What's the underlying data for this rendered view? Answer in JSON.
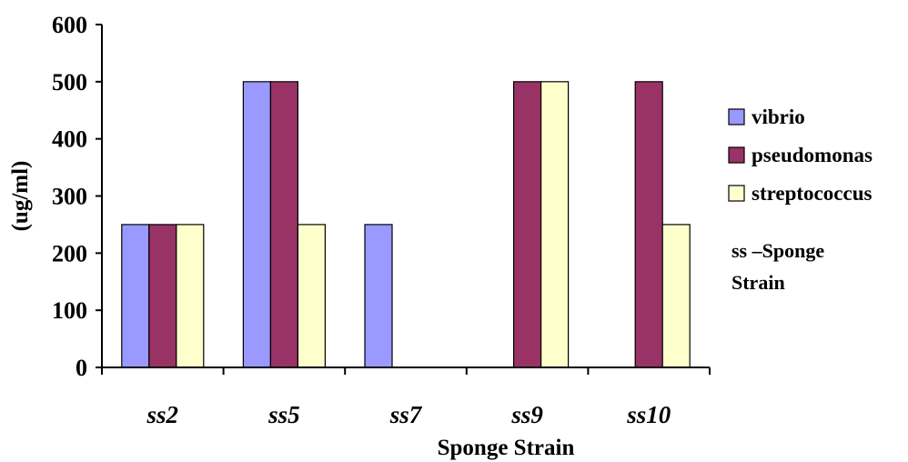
{
  "chart_data": {
    "type": "bar",
    "title": "",
    "xlabel": "Sponge Strain",
    "ylabel": "(ug/ml)",
    "ylim": [
      0,
      600
    ],
    "yticks": [
      0,
      100,
      200,
      300,
      400,
      500,
      600
    ],
    "categories": [
      "ss2",
      "ss5",
      "ss7",
      "ss9",
      "ss10"
    ],
    "series": [
      {
        "name": "vibrio",
        "color": "#9999ff",
        "values": [
          250,
          500,
          250,
          0,
          0
        ]
      },
      {
        "name": "pseudomonas",
        "color": "#993366",
        "values": [
          250,
          500,
          0,
          500,
          500
        ]
      },
      {
        "name": "streptococcus",
        "color": "#ffffcc",
        "values": [
          250,
          250,
          0,
          500,
          250
        ]
      }
    ],
    "grid": false,
    "legend_position": "right",
    "note": [
      "ss –Sponge",
      "Strain"
    ]
  }
}
